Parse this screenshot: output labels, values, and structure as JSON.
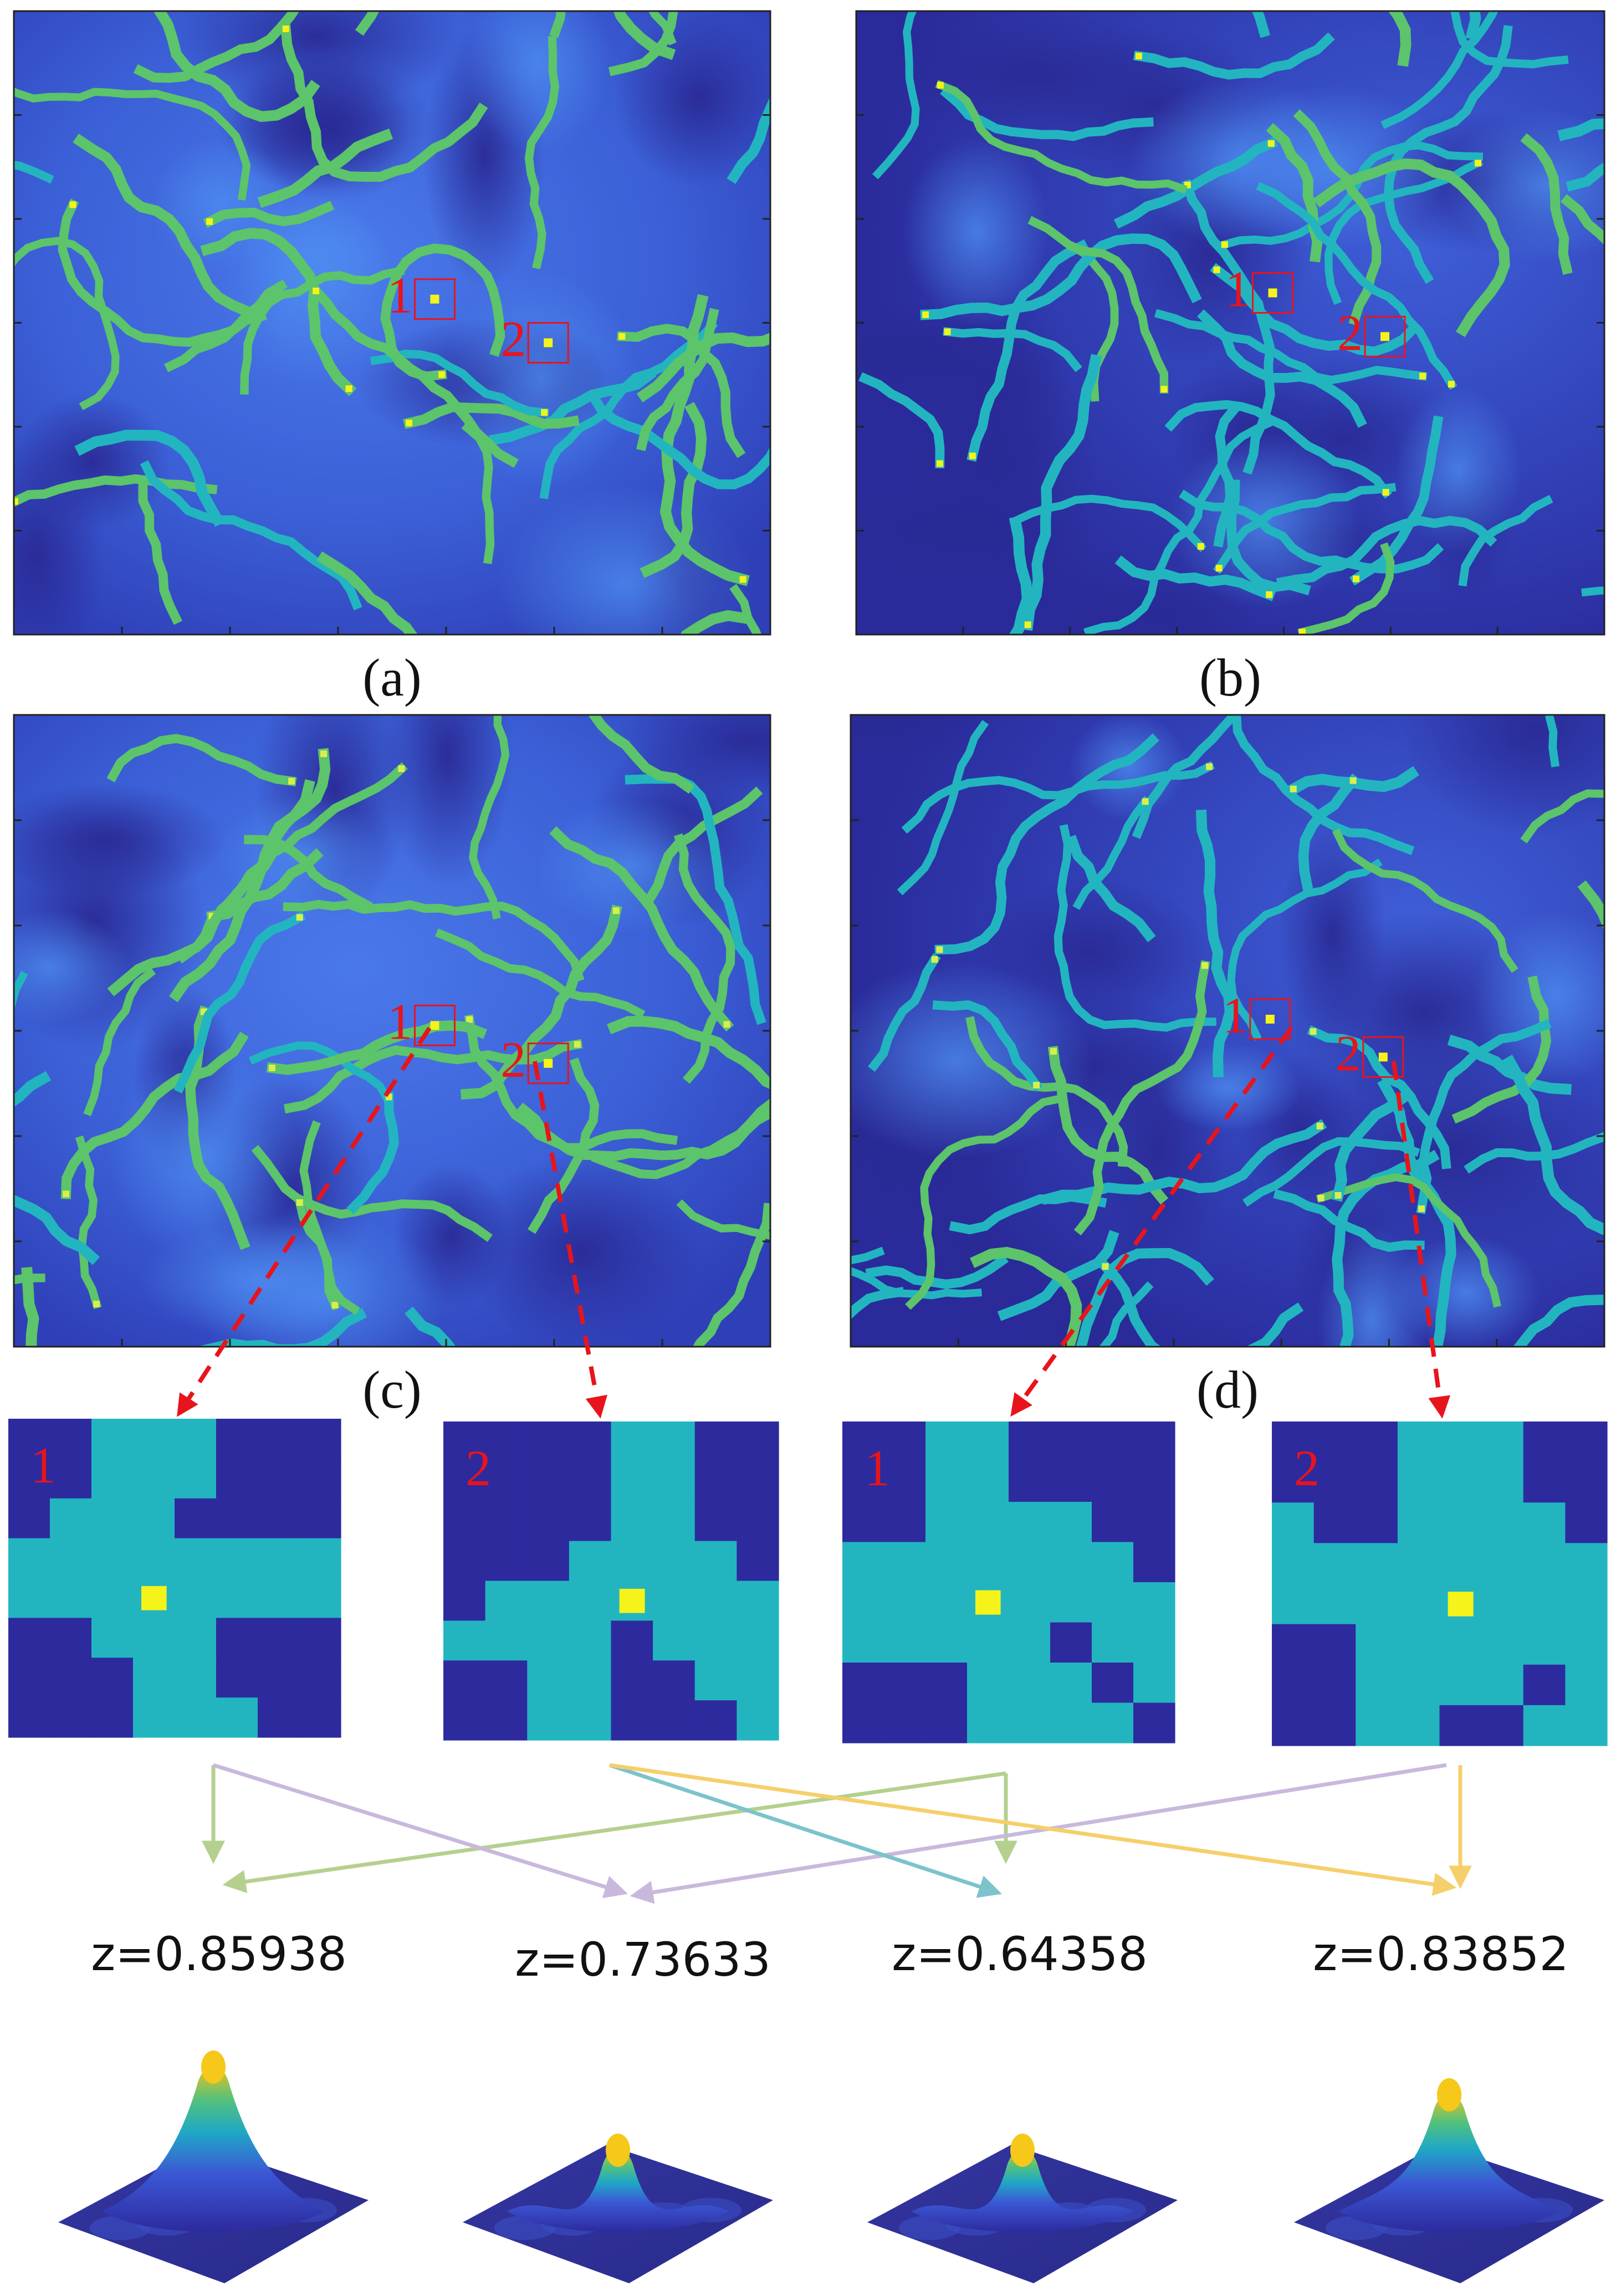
{
  "panels": [
    {
      "id": "a",
      "caption": "(a)",
      "box1": "1",
      "box2": "2"
    },
    {
      "id": "b",
      "caption": "(b)",
      "box1": "1",
      "box2": "2"
    },
    {
      "id": "c",
      "caption": "(c)",
      "box1": "1",
      "box2": "2"
    },
    {
      "id": "d",
      "caption": "(d)",
      "box1": "1",
      "box2": "2"
    }
  ],
  "patches": [
    {
      "label": "1"
    },
    {
      "label": "2"
    },
    {
      "label": "1"
    },
    {
      "label": "2"
    }
  ],
  "peaks": [
    {
      "z": "z=0.85938"
    },
    {
      "z": "z=0.73633"
    },
    {
      "z": "z=0.64358"
    },
    {
      "z": "z=0.83852"
    }
  ],
  "colors": {
    "background_blue": "#3a5fd9",
    "dark_blue": "#2d2a9e",
    "vessel_green": "#5cc46a",
    "vessel_teal": "#22b5c0",
    "highlight_yellow": "#f5f31a",
    "annotation_red": "#e8141c",
    "arrow_green": "#b5d08e",
    "arrow_purple": "#c8b9dc",
    "arrow_teal": "#7cc3cc",
    "arrow_gold": "#f5cf6a"
  }
}
